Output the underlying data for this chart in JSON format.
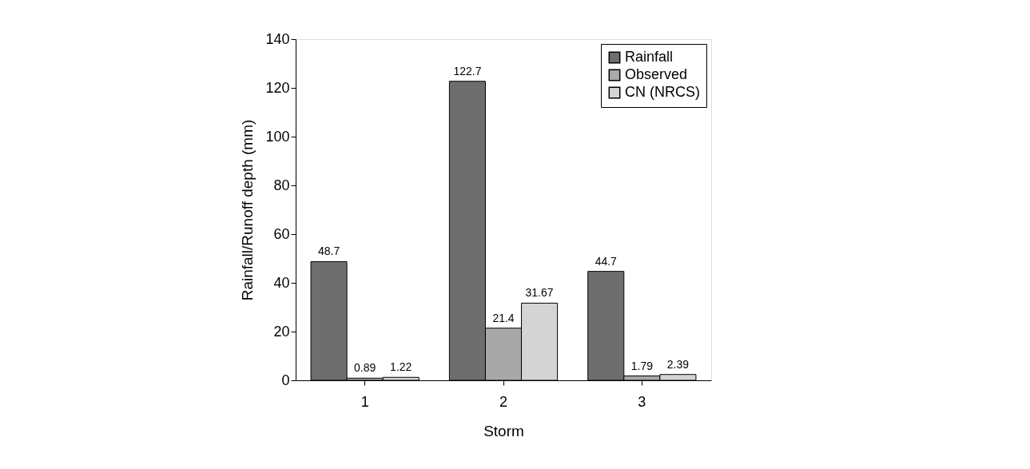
{
  "chart_data": {
    "type": "bar",
    "xlabel": "Storm",
    "ylabel": "Rainfall/Runoff depth (mm)",
    "categories": [
      "1",
      "2",
      "3"
    ],
    "series": [
      {
        "name": "Rainfall",
        "color": "#6e6e6e",
        "values": [
          48.7,
          122.7,
          44.7
        ]
      },
      {
        "name": "Observed",
        "color": "#a8a8a8",
        "values": [
          0.89,
          21.4,
          1.79
        ]
      },
      {
        "name": "CN (NRCS)",
        "color": "#d4d4d4",
        "values": [
          1.22,
          31.67,
          2.39
        ]
      }
    ],
    "ylim": [
      0,
      140
    ],
    "yticks": [
      0,
      20,
      40,
      60,
      80,
      100,
      120,
      140
    ],
    "grid": false,
    "legend": "top right",
    "data_labels": true
  }
}
